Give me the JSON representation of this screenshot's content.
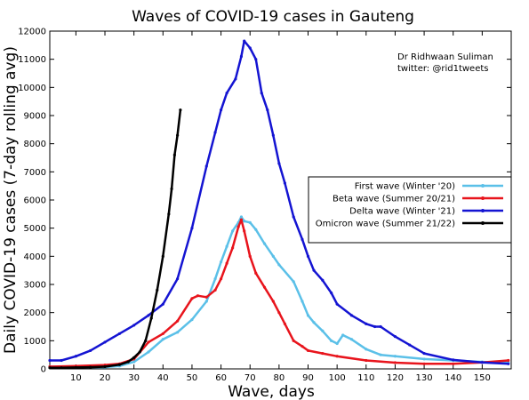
{
  "chart_data": {
    "type": "line",
    "title": "Waves of COVID-19 cases in Gauteng",
    "xlabel": "Wave, days",
    "ylabel": "Daily COVID-19 cases (7-day rolling avg)",
    "xlim": [
      1,
      160
    ],
    "ylim": [
      0,
      12000
    ],
    "xticks": [
      10,
      20,
      30,
      40,
      50,
      60,
      70,
      80,
      90,
      100,
      110,
      120,
      130,
      140,
      150
    ],
    "yticks": [
      0,
      1000,
      2000,
      3000,
      4000,
      5000,
      6000,
      7000,
      8000,
      9000,
      10000,
      11000,
      12000
    ],
    "grid": false,
    "legend_position": "right",
    "annotations": [
      "Dr Ridhwaan Suliman",
      "twitter: @rid1tweets"
    ],
    "series": [
      {
        "name": "First wave (Winter '20)",
        "color": "#5bc0e8",
        "x": [
          1,
          10,
          20,
          25,
          30,
          35,
          40,
          45,
          50,
          55,
          58,
          60,
          62,
          64,
          66,
          67,
          68,
          70,
          72,
          75,
          78,
          80,
          85,
          88,
          90,
          92,
          95,
          98,
          100,
          102,
          105,
          110,
          115,
          120,
          130,
          140,
          150,
          159
        ],
        "y": [
          80,
          60,
          60,
          100,
          250,
          600,
          1050,
          1300,
          1750,
          2400,
          3200,
          3800,
          4350,
          4900,
          5200,
          5400,
          5250,
          5200,
          4950,
          4450,
          4000,
          3700,
          3100,
          2400,
          1900,
          1650,
          1350,
          1000,
          900,
          1200,
          1050,
          700,
          500,
          450,
          350,
          300,
          250,
          220
        ]
      },
      {
        "name": "Beta wave (Summer 20/21)",
        "color": "#e8141c",
        "x": [
          1,
          10,
          20,
          25,
          30,
          35,
          40,
          45,
          50,
          52,
          55,
          58,
          60,
          62,
          64,
          66,
          67,
          68,
          70,
          72,
          75,
          78,
          80,
          82,
          85,
          88,
          90,
          95,
          100,
          110,
          120,
          130,
          140,
          150,
          159
        ],
        "y": [
          80,
          100,
          140,
          180,
          350,
          950,
          1250,
          1700,
          2500,
          2600,
          2550,
          2800,
          3200,
          3750,
          4300,
          5050,
          5300,
          4900,
          4000,
          3400,
          2900,
          2400,
          2000,
          1600,
          1000,
          800,
          650,
          550,
          450,
          300,
          220,
          180,
          180,
          230,
          300
        ]
      },
      {
        "name": "Delta wave (Winter '21)",
        "color": "#1414d2",
        "x": [
          1,
          5,
          10,
          15,
          20,
          25,
          30,
          35,
          40,
          45,
          50,
          55,
          58,
          60,
          62,
          65,
          67,
          68,
          70,
          72,
          74,
          76,
          78,
          80,
          82,
          85,
          88,
          90,
          92,
          95,
          98,
          100,
          105,
          110,
          113,
          115,
          120,
          125,
          130,
          140,
          150,
          159
        ],
        "y": [
          300,
          300,
          450,
          650,
          950,
          1250,
          1550,
          1900,
          2300,
          3200,
          5000,
          7200,
          8400,
          9200,
          9800,
          10300,
          11100,
          11650,
          11400,
          11000,
          9800,
          9200,
          8300,
          7300,
          6600,
          5400,
          4600,
          4000,
          3500,
          3150,
          2700,
          2300,
          1900,
          1600,
          1500,
          1500,
          1150,
          850,
          550,
          320,
          230,
          180
        ]
      },
      {
        "name": "Omicron wave (Summer 21/22)",
        "color": "#000000",
        "x": [
          1,
          5,
          10,
          15,
          20,
          25,
          28,
          30,
          32,
          34,
          36,
          38,
          40,
          42,
          43,
          44,
          45,
          46
        ],
        "y": [
          40,
          40,
          50,
          60,
          80,
          150,
          250,
          400,
          600,
          1000,
          1800,
          2800,
          4000,
          5500,
          6400,
          7600,
          8300,
          9200
        ]
      }
    ]
  }
}
